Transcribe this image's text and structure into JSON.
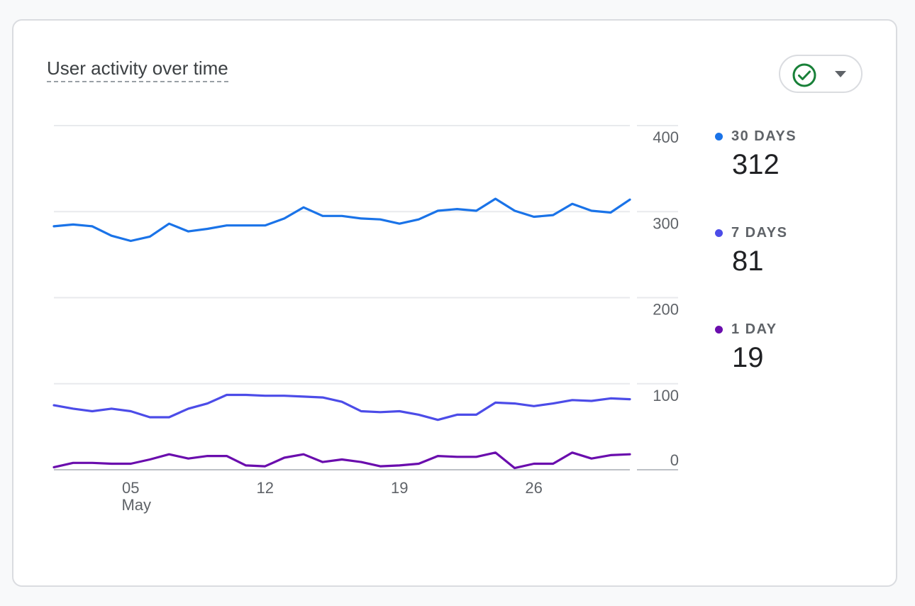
{
  "card": {
    "title": "User activity over time"
  },
  "status_button": {
    "icon": "check-circle-icon",
    "dropdown_icon": "caret-down-icon",
    "icon_color": "#188038"
  },
  "legend": [
    {
      "label": "30 DAYS",
      "value": "312",
      "color": "#1a73e8"
    },
    {
      "label": "7 DAYS",
      "value": "81",
      "color": "#4c4ce8"
    },
    {
      "label": "1 DAY",
      "value": "19",
      "color": "#6a0dad"
    }
  ],
  "chart_data": {
    "type": "line",
    "x": [
      "2024-05-01",
      "2024-05-02",
      "2024-05-03",
      "2024-05-04",
      "2024-05-05",
      "2024-05-06",
      "2024-05-07",
      "2024-05-08",
      "2024-05-09",
      "2024-05-10",
      "2024-05-11",
      "2024-05-12",
      "2024-05-13",
      "2024-05-14",
      "2024-05-15",
      "2024-05-16",
      "2024-05-17",
      "2024-05-18",
      "2024-05-19",
      "2024-05-20",
      "2024-05-21",
      "2024-05-22",
      "2024-05-23",
      "2024-05-24",
      "2024-05-25",
      "2024-05-26",
      "2024-05-27",
      "2024-05-28",
      "2024-05-29",
      "2024-05-30",
      "2024-05-31"
    ],
    "x_ticks": [
      {
        "date": "2024-05-05",
        "label": "05",
        "sublabel": "May"
      },
      {
        "date": "2024-05-12",
        "label": "12"
      },
      {
        "date": "2024-05-19",
        "label": "19"
      },
      {
        "date": "2024-05-26",
        "label": "26"
      }
    ],
    "y_ticks": [
      0,
      100,
      200,
      300,
      400
    ],
    "ylim": [
      0,
      400
    ],
    "series": [
      {
        "name": "30 DAYS",
        "color": "#1a73e8",
        "values": [
          283,
          285,
          283,
          272,
          266,
          271,
          286,
          277,
          280,
          284,
          284,
          284,
          292,
          305,
          295,
          295,
          292,
          291,
          286,
          291,
          301,
          303,
          301,
          315,
          301,
          294,
          296,
          309,
          301,
          299,
          314
        ]
      },
      {
        "name": "7 DAYS",
        "color": "#4c4ce8",
        "values": [
          75,
          71,
          68,
          71,
          68,
          61,
          61,
          71,
          77,
          87,
          87,
          86,
          86,
          85,
          84,
          79,
          68,
          67,
          68,
          64,
          58,
          64,
          64,
          78,
          77,
          74,
          77,
          81,
          80,
          83,
          82
        ]
      },
      {
        "name": "1 DAY",
        "color": "#6a0dad",
        "values": [
          3,
          8,
          8,
          7,
          7,
          12,
          18,
          13,
          16,
          16,
          5,
          4,
          14,
          18,
          9,
          12,
          9,
          4,
          5,
          7,
          16,
          15,
          15,
          20,
          2,
          7,
          7,
          20,
          13,
          17,
          18
        ]
      }
    ],
    "grid": true,
    "legend_position": "right"
  }
}
